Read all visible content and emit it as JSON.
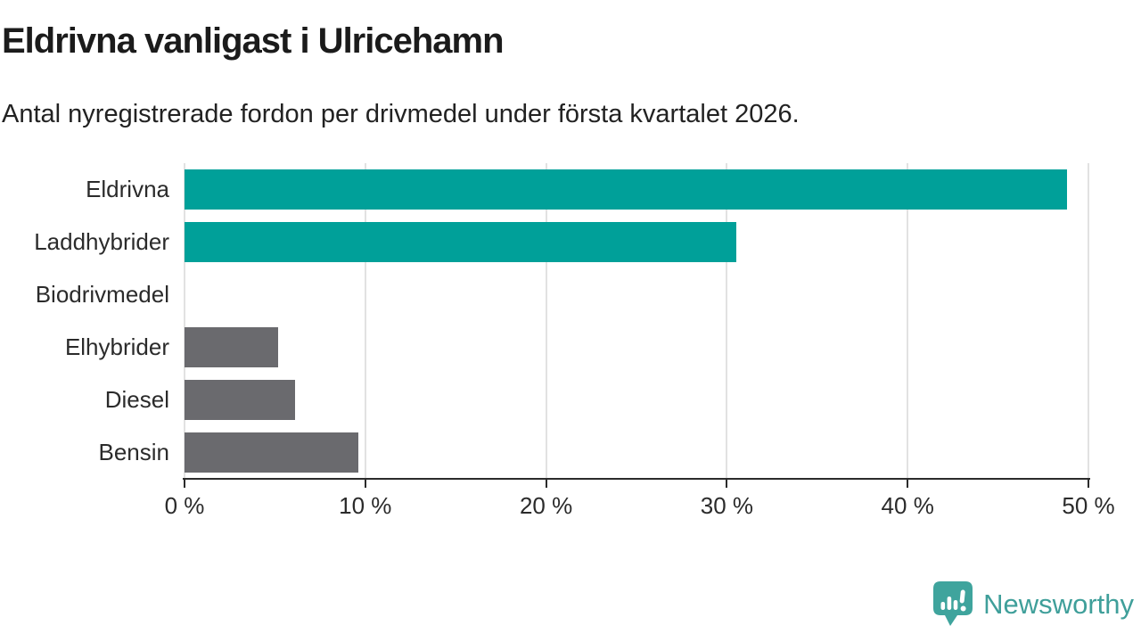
{
  "header": {
    "title": "Eldrivna vanligast i Ulricehamn",
    "subtitle": "Antal nyregistrerade fordon per drivmedel under första kvartalet 2026."
  },
  "chart_data": {
    "type": "bar",
    "orientation": "horizontal",
    "title": "Eldrivna vanligast i Ulricehamn",
    "subtitle": "Antal nyregistrerade fordon per drivmedel under första kvartalet 2026.",
    "categories": [
      "Eldrivna",
      "Laddhybrider",
      "Biodrivmedel",
      "Elhybrider",
      "Diesel",
      "Bensin"
    ],
    "values": [
      48.8,
      30.5,
      0,
      5.2,
      6.1,
      9.6
    ],
    "unit": "%",
    "bar_colors": [
      "#00a099",
      "#00a099",
      "#6a6a6e",
      "#6a6a6e",
      "#6a6a6e",
      "#6a6a6e"
    ],
    "xlim": [
      0,
      50
    ],
    "x_ticks": [
      0,
      10,
      20,
      30,
      40,
      50
    ],
    "x_tick_labels": [
      "0 %",
      "10 %",
      "20 %",
      "30 %",
      "40 %",
      "50 %"
    ],
    "grid": "vertical-gridlines",
    "legend": "none"
  },
  "footer": {
    "brand": "Newsworthy"
  },
  "colors": {
    "teal": "#00a099",
    "gray": "#6a6a6e",
    "grid": "#e2e2e2",
    "axis": "#2b2b2b",
    "brand": "#3f9f9a"
  }
}
